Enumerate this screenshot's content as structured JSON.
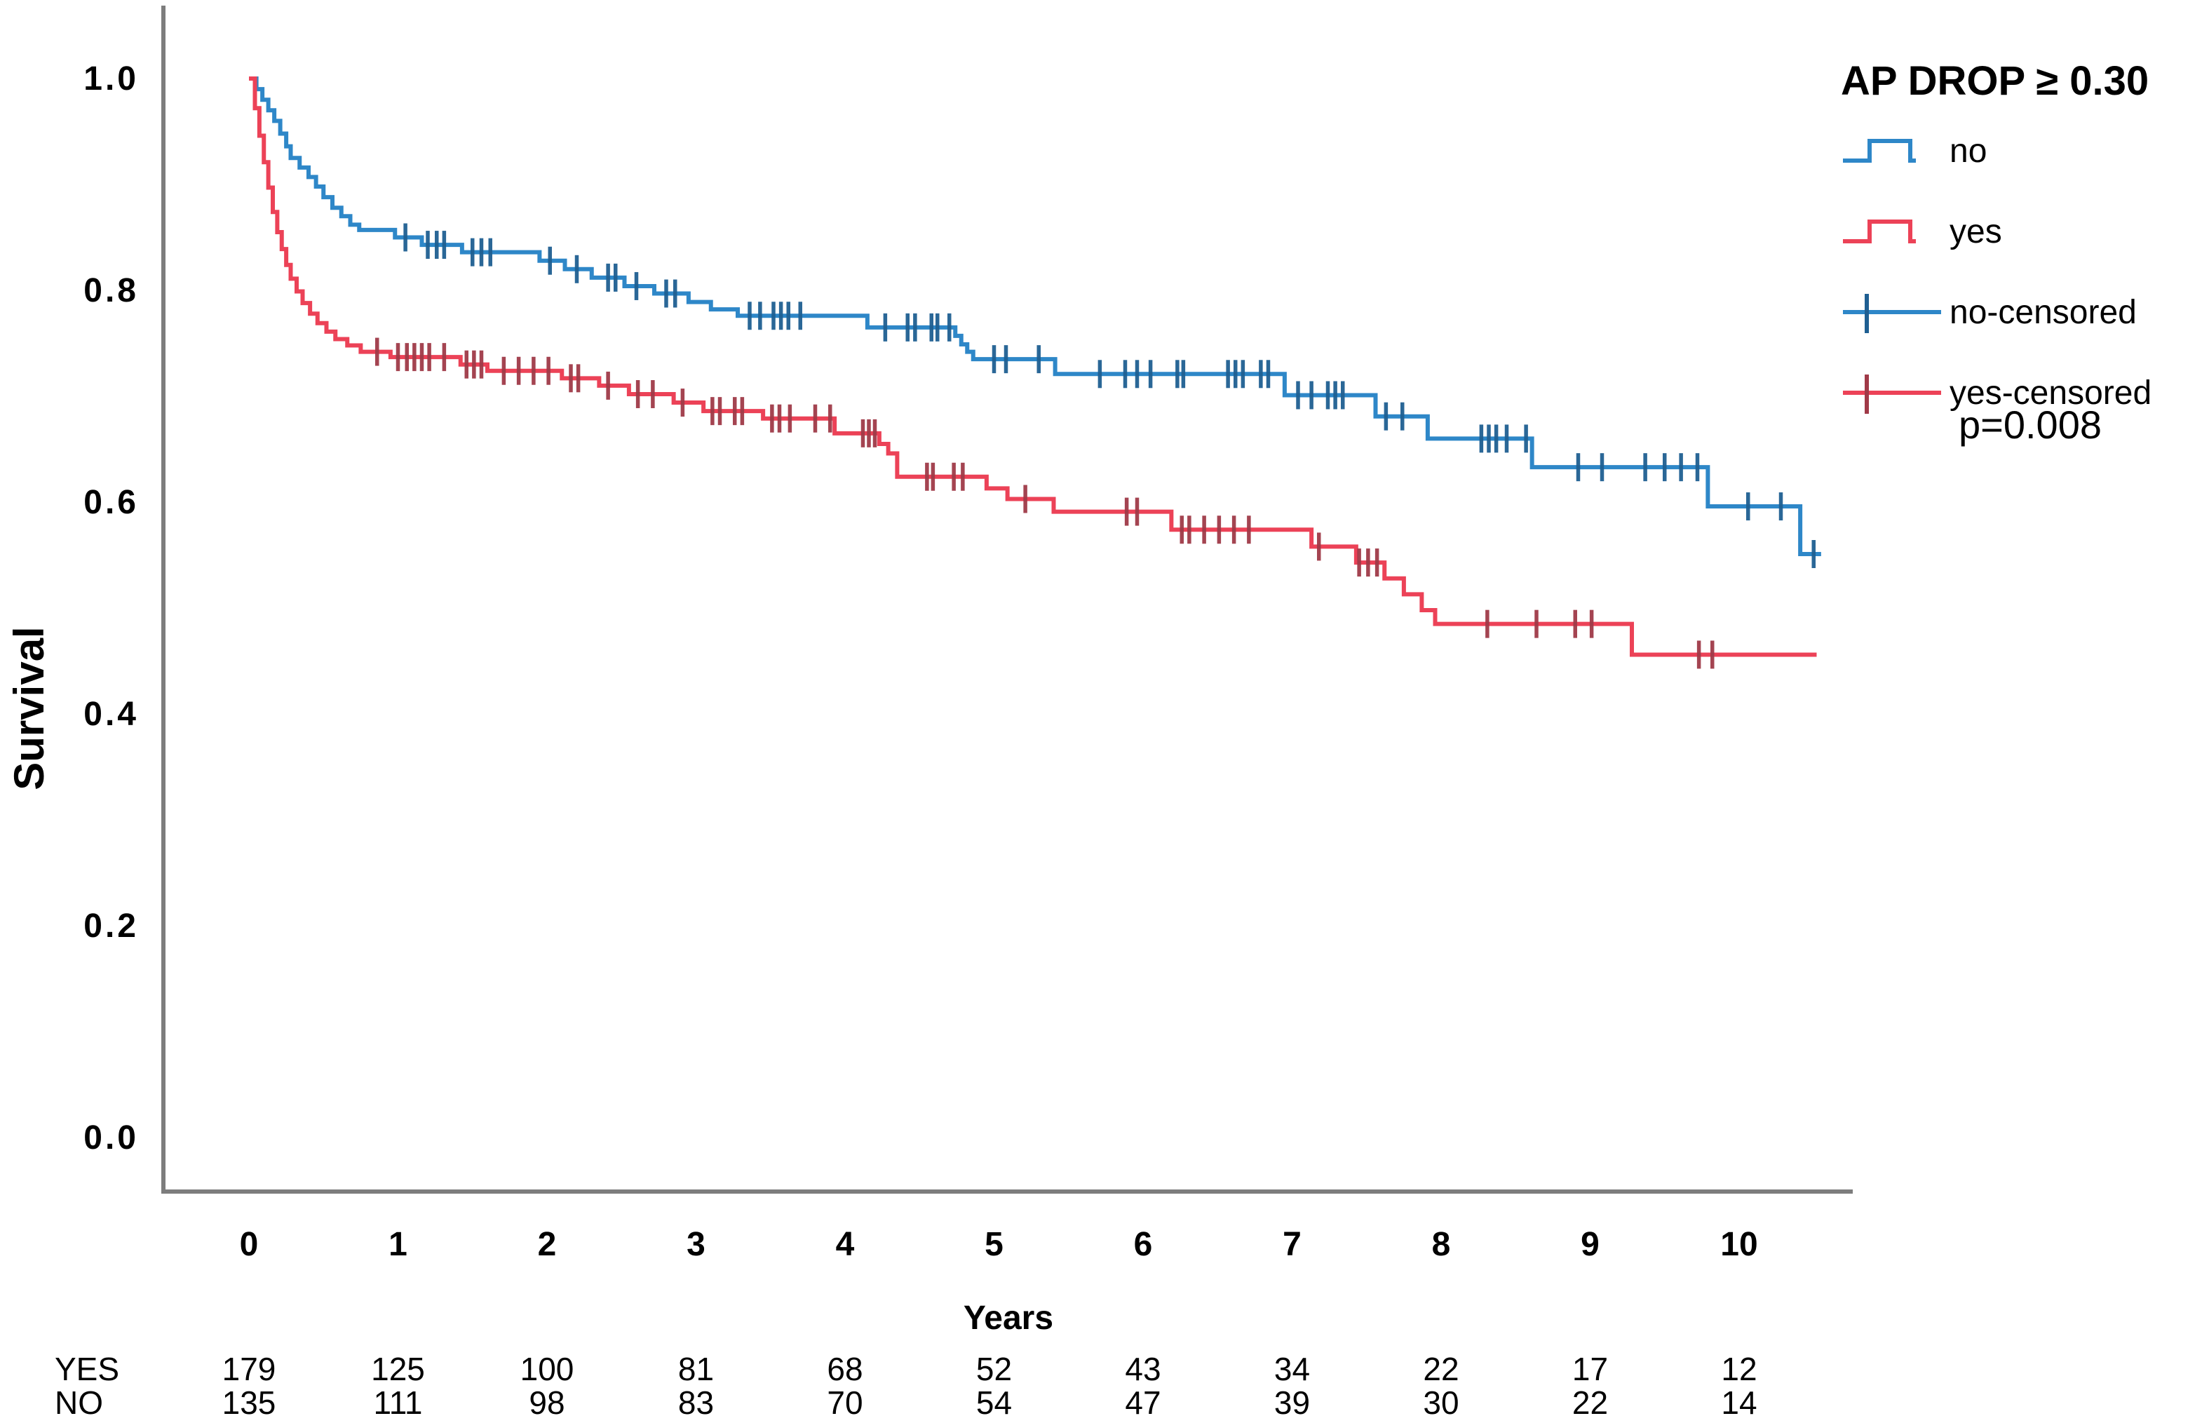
{
  "figure": {
    "legend_title": "AP DROP ≥ 0.30",
    "p_value": "p=0.008",
    "ylabel": "Survival",
    "xlabel": "Years"
  },
  "chart_data": {
    "type": "line",
    "subtype": "kaplan-meier-step",
    "title": "",
    "xlabel": "Years",
    "ylabel": "Survival",
    "xlim": [
      -0.55,
      10.8
    ],
    "ylim": [
      0.0,
      1.05
    ],
    "x_ticks": [
      "0",
      "1",
      "2",
      "3",
      "4",
      "5",
      "6",
      "7",
      "8",
      "9",
      "10"
    ],
    "y_ticks": [
      "0.0",
      "0.2",
      "0.4",
      "0.6",
      "0.8",
      "1.0"
    ],
    "grid": false,
    "legend_position": "top-right",
    "legend_title": "AP DROP ≥ 0.30",
    "legend_entries": [
      "no",
      "yes",
      "no-censored",
      "yes-censored"
    ],
    "annotation": "p=0.008",
    "series": [
      {
        "name": "no",
        "color": "#2e87c8",
        "censor_color": "#1f5f92",
        "end_t": 10.55,
        "steps": [
          [
            0,
            1.0
          ],
          [
            0.05,
            0.99
          ],
          [
            0.09,
            0.98
          ],
          [
            0.13,
            0.97
          ],
          [
            0.17,
            0.96
          ],
          [
            0.21,
            0.948
          ],
          [
            0.25,
            0.936
          ],
          [
            0.28,
            0.925
          ],
          [
            0.34,
            0.916
          ],
          [
            0.4,
            0.907
          ],
          [
            0.45,
            0.898
          ],
          [
            0.5,
            0.888
          ],
          [
            0.56,
            0.878
          ],
          [
            0.62,
            0.87
          ],
          [
            0.68,
            0.862
          ],
          [
            0.74,
            0.857
          ],
          [
            0.98,
            0.85
          ],
          [
            1.16,
            0.843
          ],
          [
            1.43,
            0.836
          ],
          [
            1.95,
            0.828
          ],
          [
            2.12,
            0.82
          ],
          [
            2.3,
            0.812
          ],
          [
            2.52,
            0.804
          ],
          [
            2.72,
            0.797
          ],
          [
            2.95,
            0.789
          ],
          [
            3.1,
            0.782
          ],
          [
            3.28,
            0.776
          ],
          [
            4.15,
            0.765
          ],
          [
            4.74,
            0.757
          ],
          [
            4.78,
            0.749
          ],
          [
            4.82,
            0.742
          ],
          [
            4.86,
            0.735
          ],
          [
            5.41,
            0.721
          ],
          [
            6.95,
            0.701
          ],
          [
            7.56,
            0.681
          ],
          [
            7.91,
            0.66
          ],
          [
            8.61,
            0.633
          ],
          [
            9.79,
            0.596
          ],
          [
            10.41,
            0.551
          ]
        ],
        "censors": [
          1.05,
          1.2,
          1.26,
          1.31,
          1.5,
          1.56,
          1.62,
          2.02,
          2.2,
          2.41,
          2.46,
          2.6,
          2.8,
          2.86,
          3.36,
          3.43,
          3.52,
          3.57,
          3.62,
          3.7,
          4.27,
          4.42,
          4.47,
          4.58,
          4.62,
          4.7,
          5.0,
          5.08,
          5.3,
          5.71,
          5.88,
          5.96,
          6.05,
          6.23,
          6.27,
          6.57,
          6.62,
          6.67,
          6.79,
          6.84,
          7.04,
          7.13,
          7.24,
          7.29,
          7.34,
          7.63,
          7.74,
          8.27,
          8.32,
          8.37,
          8.44,
          8.57,
          8.92,
          9.08,
          9.37,
          9.5,
          9.61,
          9.72,
          10.06,
          10.28,
          10.5
        ]
      },
      {
        "name": "yes",
        "color": "#ec4257",
        "censor_color": "#a03a48",
        "end_t": 10.52,
        "steps": [
          [
            0,
            1.0
          ],
          [
            0.04,
            0.972
          ],
          [
            0.07,
            0.946
          ],
          [
            0.1,
            0.921
          ],
          [
            0.13,
            0.897
          ],
          [
            0.16,
            0.874
          ],
          [
            0.19,
            0.855
          ],
          [
            0.22,
            0.839
          ],
          [
            0.25,
            0.824
          ],
          [
            0.28,
            0.811
          ],
          [
            0.32,
            0.799
          ],
          [
            0.36,
            0.788
          ],
          [
            0.41,
            0.778
          ],
          [
            0.46,
            0.769
          ],
          [
            0.52,
            0.761
          ],
          [
            0.58,
            0.754
          ],
          [
            0.66,
            0.748
          ],
          [
            0.75,
            0.742
          ],
          [
            0.95,
            0.737
          ],
          [
            1.42,
            0.73
          ],
          [
            1.6,
            0.724
          ],
          [
            2.1,
            0.717
          ],
          [
            2.35,
            0.71
          ],
          [
            2.55,
            0.702
          ],
          [
            2.85,
            0.694
          ],
          [
            3.05,
            0.686
          ],
          [
            3.45,
            0.679
          ],
          [
            3.93,
            0.665
          ],
          [
            4.23,
            0.655
          ],
          [
            4.29,
            0.646
          ],
          [
            4.35,
            0.624
          ],
          [
            4.95,
            0.613
          ],
          [
            5.09,
            0.603
          ],
          [
            5.4,
            0.591
          ],
          [
            6.19,
            0.574
          ],
          [
            7.13,
            0.558
          ],
          [
            7.43,
            0.543
          ],
          [
            7.62,
            0.528
          ],
          [
            7.75,
            0.513
          ],
          [
            7.87,
            0.498
          ],
          [
            7.96,
            0.485
          ],
          [
            9.28,
            0.456
          ]
        ],
        "censors": [
          0.86,
          1.0,
          1.06,
          1.11,
          1.16,
          1.21,
          1.31,
          1.46,
          1.51,
          1.56,
          1.71,
          1.81,
          1.91,
          2.01,
          2.16,
          2.21,
          2.41,
          2.61,
          2.71,
          2.91,
          3.11,
          3.16,
          3.26,
          3.31,
          3.51,
          3.56,
          3.63,
          3.8,
          3.9,
          4.12,
          4.16,
          4.2,
          4.55,
          4.59,
          4.73,
          4.79,
          5.21,
          5.89,
          5.96,
          6.26,
          6.31,
          6.41,
          6.51,
          6.61,
          6.71,
          7.18,
          7.45,
          7.51,
          7.57,
          8.31,
          8.64,
          8.9,
          9.01,
          9.73,
          9.82
        ]
      }
    ],
    "at_risk_table": {
      "rows": [
        {
          "label": "YES",
          "values": [
            "179",
            "125",
            "100",
            "81",
            "68",
            "52",
            "43",
            "34",
            "22",
            "17",
            "12"
          ]
        },
        {
          "label": "NO",
          "values": [
            "135",
            "111",
            "98",
            "83",
            "70",
            "54",
            "47",
            "39",
            "30",
            "22",
            "14"
          ]
        }
      ]
    }
  }
}
